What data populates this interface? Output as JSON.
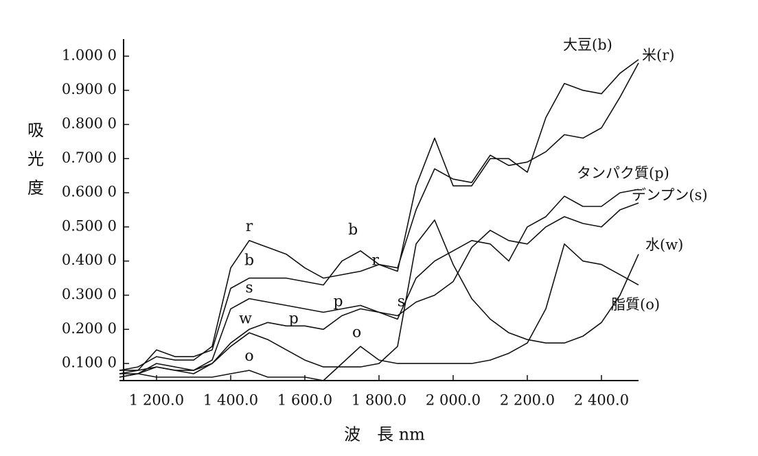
{
  "chart_data": {
    "type": "line",
    "x_label": "波　長 nm",
    "y_label": "吸光度",
    "xlim": [
      1100,
      2500
    ],
    "ylim": [
      0.05,
      1.05
    ],
    "xticks": [
      {
        "value": 1200,
        "label": "1 200.0"
      },
      {
        "value": 1400,
        "label": "1 400.0"
      },
      {
        "value": 1600,
        "label": "1 600.0"
      },
      {
        "value": 1800,
        "label": "1 800.0"
      },
      {
        "value": 2000,
        "label": "2 000.0"
      },
      {
        "value": 2200,
        "label": "2 200.0"
      },
      {
        "value": 2400,
        "label": "2 400.0"
      }
    ],
    "yticks": [
      {
        "value": 0.1,
        "label": "0.100 0"
      },
      {
        "value": 0.2,
        "label": "0.200 0"
      },
      {
        "value": 0.3,
        "label": "0.300 0"
      },
      {
        "value": 0.4,
        "label": "0.400 0"
      },
      {
        "value": 0.5,
        "label": "0.500 0"
      },
      {
        "value": 0.6,
        "label": "0.600 0"
      },
      {
        "value": 0.7,
        "label": "0.700 0"
      },
      {
        "value": 0.8,
        "label": "0.800 0"
      },
      {
        "value": 0.9,
        "label": "0.900 0"
      },
      {
        "value": 1.0,
        "label": "1.000 0"
      }
    ],
    "x": [
      1100,
      1150,
      1200,
      1250,
      1300,
      1350,
      1400,
      1450,
      1500,
      1550,
      1600,
      1650,
      1700,
      1750,
      1800,
      1850,
      1900,
      1950,
      2000,
      2050,
      2100,
      2150,
      2200,
      2250,
      2300,
      2350,
      2400,
      2450,
      2500
    ],
    "series": [
      {
        "name": "大豆(b)",
        "color": "#111111",
        "values": [
          0.07,
          0.08,
          0.14,
          0.12,
          0.12,
          0.14,
          0.32,
          0.35,
          0.35,
          0.35,
          0.34,
          0.33,
          0.4,
          0.43,
          0.39,
          0.37,
          0.62,
          0.76,
          0.62,
          0.62,
          0.7,
          0.7,
          0.66,
          0.82,
          0.92,
          0.9,
          0.89,
          0.95,
          0.99
        ]
      },
      {
        "name": "米(r)",
        "color": "#111111",
        "values": [
          0.08,
          0.09,
          0.12,
          0.11,
          0.11,
          0.15,
          0.38,
          0.46,
          0.44,
          0.42,
          0.38,
          0.35,
          0.36,
          0.37,
          0.39,
          0.38,
          0.55,
          0.67,
          0.64,
          0.63,
          0.71,
          0.68,
          0.69,
          0.72,
          0.77,
          0.76,
          0.79,
          0.88,
          0.98
        ]
      },
      {
        "name": "タンパク質(p)",
        "color": "#111111",
        "values": [
          0.06,
          0.07,
          0.09,
          0.08,
          0.08,
          0.1,
          0.16,
          0.2,
          0.22,
          0.21,
          0.21,
          0.2,
          0.24,
          0.26,
          0.25,
          0.23,
          0.35,
          0.4,
          0.43,
          0.46,
          0.45,
          0.4,
          0.5,
          0.53,
          0.59,
          0.56,
          0.56,
          0.6,
          0.61
        ]
      },
      {
        "name": "デンプン(s)",
        "color": "#111111",
        "values": [
          0.06,
          0.07,
          0.1,
          0.09,
          0.08,
          0.11,
          0.26,
          0.29,
          0.28,
          0.27,
          0.26,
          0.25,
          0.26,
          0.27,
          0.25,
          0.24,
          0.28,
          0.3,
          0.34,
          0.44,
          0.49,
          0.46,
          0.45,
          0.5,
          0.53,
          0.51,
          0.5,
          0.55,
          0.57
        ]
      },
      {
        "name": "水(w)",
        "color": "#111111",
        "values": [
          0.08,
          0.08,
          0.09,
          0.08,
          0.07,
          0.1,
          0.15,
          0.19,
          0.17,
          0.14,
          0.11,
          0.09,
          0.09,
          0.09,
          0.1,
          0.15,
          0.45,
          0.52,
          0.39,
          0.29,
          0.23,
          0.19,
          0.17,
          0.16,
          0.16,
          0.18,
          0.22,
          0.3,
          0.42
        ]
      },
      {
        "name": "脂質(o)",
        "color": "#111111",
        "values": [
          0.07,
          0.07,
          0.06,
          0.06,
          0.06,
          0.06,
          0.07,
          0.08,
          0.06,
          0.06,
          0.06,
          0.05,
          0.1,
          0.15,
          0.11,
          0.1,
          0.1,
          0.1,
          0.1,
          0.1,
          0.11,
          0.13,
          0.16,
          0.26,
          0.45,
          0.4,
          0.39,
          0.36,
          0.33
        ]
      }
    ],
    "annotations": [
      {
        "text": "r",
        "x": 1450,
        "y": 0.5
      },
      {
        "text": "b",
        "x": 1450,
        "y": 0.4
      },
      {
        "text": "s",
        "x": 1450,
        "y": 0.32
      },
      {
        "text": "w",
        "x": 1440,
        "y": 0.23
      },
      {
        "text": "p",
        "x": 1570,
        "y": 0.23
      },
      {
        "text": "o",
        "x": 1450,
        "y": 0.12
      },
      {
        "text": "b",
        "x": 1730,
        "y": 0.49
      },
      {
        "text": "r",
        "x": 1790,
        "y": 0.4
      },
      {
        "text": "p",
        "x": 1690,
        "y": 0.28
      },
      {
        "text": "s",
        "x": 1860,
        "y": 0.28
      },
      {
        "text": "o",
        "x": 1740,
        "y": 0.19
      }
    ]
  }
}
